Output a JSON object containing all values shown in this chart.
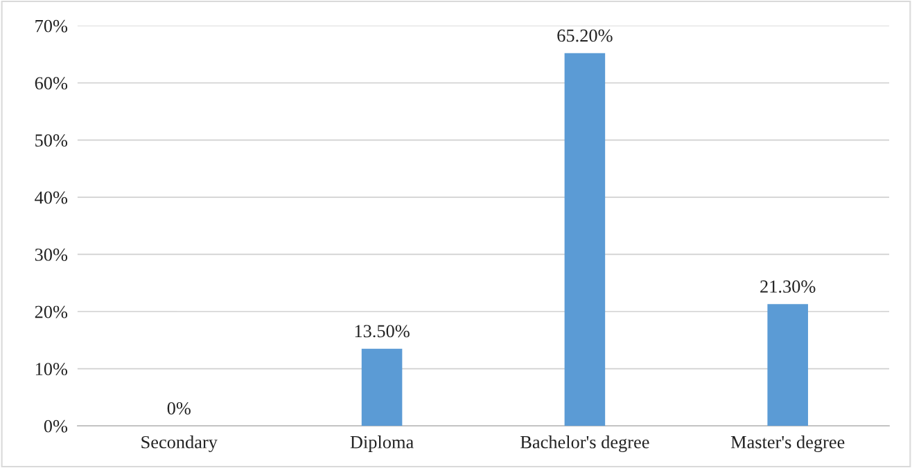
{
  "chart_data": {
    "type": "bar",
    "categories": [
      "Secondary",
      "Diploma",
      "Bachelor's degree",
      "Master's degree"
    ],
    "values": [
      0,
      13.5,
      65.2,
      21.3
    ],
    "value_labels": [
      "0%",
      "13.50%",
      "65.20%",
      "21.30%"
    ],
    "color": "#5b9bd5",
    "ylim": [
      0,
      70
    ],
    "yticks": [
      {
        "value": 0,
        "label": "0%"
      },
      {
        "value": 10,
        "label": "10%"
      },
      {
        "value": 20,
        "label": "20%"
      },
      {
        "value": 30,
        "label": "30%"
      },
      {
        "value": 40,
        "label": "40%"
      },
      {
        "value": 50,
        "label": "50%"
      },
      {
        "value": 60,
        "label": "60%"
      },
      {
        "value": 70,
        "label": "70%"
      }
    ],
    "grid": "y",
    "legend": false
  }
}
